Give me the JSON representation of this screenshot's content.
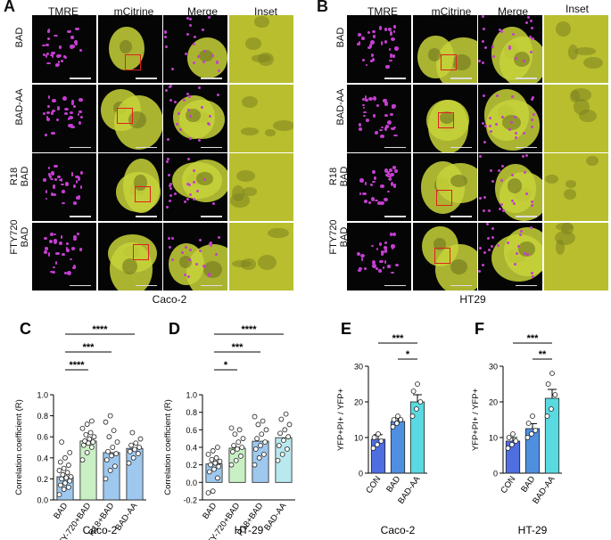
{
  "panels": {
    "A": {
      "letter": "A",
      "columns": [
        "TMRE",
        "mCitrine",
        "Merge",
        "Inset"
      ],
      "rows": [
        "BAD",
        "BAD-AA",
        "R18\nBAD",
        "FTY720\nBAD"
      ],
      "caption": "Caco-2"
    },
    "B": {
      "letter": "B",
      "columns": [
        "TMRE",
        "mCitrine",
        "Merge",
        "Inset"
      ],
      "rows": [
        "BAD",
        "BAD-AA",
        "R18\nBAD",
        "FTY720\nBAD"
      ],
      "caption": "HT29"
    }
  },
  "colors": {
    "tmre": "#c43fd0",
    "citrine": "#c8d43a",
    "inset": "#b9be2e",
    "bar_green": "#c9efc4",
    "bar_blue": "#9ec8ee",
    "bar_cyan": "#b9e8ee",
    "bar_blue2": "#4f8fe0",
    "bar_cyan2": "#59d9e0"
  },
  "chart_data": [
    {
      "id": "C",
      "letter": "C",
      "type": "bar",
      "categories": [
        "BAD",
        "FTY-720+BAD",
        "R18+BAD",
        "BAD-AA"
      ],
      "values": [
        0.22,
        0.56,
        0.45,
        0.49
      ],
      "ylabel": "Correlation coefficient (R)",
      "ylim": [
        0,
        1.0
      ],
      "yticks": [
        "0.0",
        "0.2",
        "0.4",
        "0.6",
        "0.8",
        "1.0"
      ],
      "yticks_num": [
        0,
        0.2,
        0.4,
        0.6,
        0.8,
        1.0
      ],
      "xlabel": "Caco-2",
      "significance": [
        "****",
        "***",
        "****"
      ],
      "sig_pairs": [
        [
          0,
          1
        ],
        [
          0,
          2
        ],
        [
          0,
          3
        ]
      ],
      "points": [
        [
          0.05,
          0.1,
          0.12,
          0.14,
          0.16,
          0.18,
          0.2,
          0.21,
          0.22,
          0.24,
          0.26,
          0.28,
          0.3,
          0.33,
          0.36,
          0.4,
          0.45,
          0.55
        ],
        [
          0.38,
          0.45,
          0.5,
          0.52,
          0.54,
          0.55,
          0.56,
          0.58,
          0.6,
          0.62,
          0.64,
          0.68,
          0.72,
          0.75
        ],
        [
          0.2,
          0.28,
          0.32,
          0.38,
          0.42,
          0.44,
          0.46,
          0.5,
          0.55,
          0.6,
          0.66,
          0.74,
          0.8
        ],
        [
          0.35,
          0.4,
          0.44,
          0.46,
          0.48,
          0.5,
          0.52,
          0.54,
          0.58,
          0.64
        ]
      ]
    },
    {
      "id": "D",
      "letter": "D",
      "type": "bar",
      "categories": [
        "BAD",
        "FTY-720+BAD",
        "R18+BAD",
        "BAD-AA"
      ],
      "values": [
        0.21,
        0.39,
        0.47,
        0.51
      ],
      "ylabel": "Correlation coefficient (R)",
      "ylim": [
        -0.2,
        1.0
      ],
      "yticks": [
        "-0.2",
        "0.0",
        "0.2",
        "0.4",
        "0.6",
        "0.8",
        "1.0"
      ],
      "yticks_num": [
        -0.2,
        0,
        0.2,
        0.4,
        0.6,
        0.8,
        1.0
      ],
      "xlabel": "HT-29",
      "significance": [
        "*",
        "***",
        "****"
      ],
      "sig_pairs": [
        [
          0,
          1
        ],
        [
          0,
          2
        ],
        [
          0,
          3
        ]
      ],
      "points": [
        [
          -0.12,
          -0.1,
          0.05,
          0.12,
          0.15,
          0.18,
          0.2,
          0.22,
          0.24,
          0.26,
          0.28,
          0.32,
          0.36,
          0.4
        ],
        [
          0.2,
          0.25,
          0.3,
          0.35,
          0.38,
          0.4,
          0.42,
          0.46,
          0.5,
          0.55,
          0.6,
          0.62
        ],
        [
          0.2,
          0.28,
          0.32,
          0.38,
          0.42,
          0.46,
          0.5,
          0.55,
          0.6,
          0.66,
          0.7,
          0.75
        ],
        [
          0.25,
          0.32,
          0.38,
          0.42,
          0.48,
          0.52,
          0.56,
          0.6,
          0.66,
          0.72,
          0.78
        ]
      ]
    },
    {
      "id": "E",
      "letter": "E",
      "type": "bar",
      "categories": [
        "CON",
        "BAD",
        "BAD-AA"
      ],
      "values": [
        9.5,
        14.5,
        20
      ],
      "errors": [
        1.3,
        1.0,
        2.0
      ],
      "ylabel": "YFP+PI+ / YFP+",
      "ylim": [
        0,
        30
      ],
      "yticks": [
        "0",
        "10",
        "20",
        "30"
      ],
      "yticks_num": [
        0,
        10,
        20,
        30
      ],
      "xlabel": "Caco-2",
      "significance": [
        "***",
        "*"
      ],
      "sig_pairs": [
        [
          0,
          2
        ],
        [
          1,
          2
        ]
      ],
      "points": [
        [
          7,
          8,
          9,
          10,
          11
        ],
        [
          13,
          14,
          15,
          15,
          16
        ],
        [
          16,
          18,
          20,
          23,
          25
        ]
      ]
    },
    {
      "id": "F",
      "letter": "F",
      "type": "bar",
      "categories": [
        "CON",
        "BAD",
        "BAD-AA"
      ],
      "values": [
        9,
        12.5,
        21
      ],
      "errors": [
        1.0,
        1.4,
        2.5
      ],
      "ylabel": "YFP+PI+ / YFP+",
      "ylim": [
        0,
        30
      ],
      "yticks": [
        "0",
        "10",
        "20",
        "30"
      ],
      "yticks_num": [
        0,
        10,
        20,
        30
      ],
      "xlabel": "HT-29",
      "significance": [
        "***",
        "**"
      ],
      "sig_pairs": [
        [
          0,
          2
        ],
        [
          1,
          2
        ]
      ],
      "points": [
        [
          7,
          8,
          9,
          10,
          11
        ],
        [
          10,
          11,
          12,
          14,
          16
        ],
        [
          16,
          18,
          22,
          25,
          28
        ]
      ]
    }
  ]
}
